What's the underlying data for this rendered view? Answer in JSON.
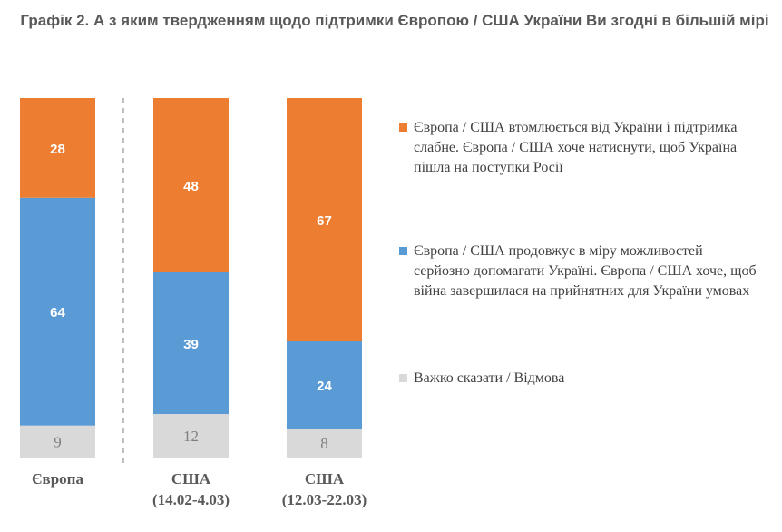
{
  "chart_data": {
    "type": "bar",
    "stacked": true,
    "title": "Графік 2. А з яким твердженням щодо підтримки Європою / США України Ви згодні в більшій мірі",
    "categories": [
      [
        "Європа"
      ],
      [
        "США",
        "(14.02-4.03)"
      ],
      [
        "США",
        "(12.03-22.03)"
      ]
    ],
    "series": [
      {
        "name": "Важко сказати / Відмова",
        "color": "#D9D9D9",
        "values": [
          9,
          12,
          8
        ]
      },
      {
        "name": "Європа / США продовжує в міру можливостей серйозно допомагати Україні. Європа / США хоче, щоб війна завершилася на прийнятних для України умовах",
        "color": "#5B9BD5",
        "values": [
          64,
          39,
          24
        ]
      },
      {
        "name": "Європа / США втомлюється від України і підтримка слабне. Європа / США хоче натиснути, щоб Україна пішла на поступки Росії",
        "color": "#ED7D31",
        "values": [
          28,
          48,
          67
        ]
      }
    ],
    "legend_position": "right",
    "grid": false
  }
}
